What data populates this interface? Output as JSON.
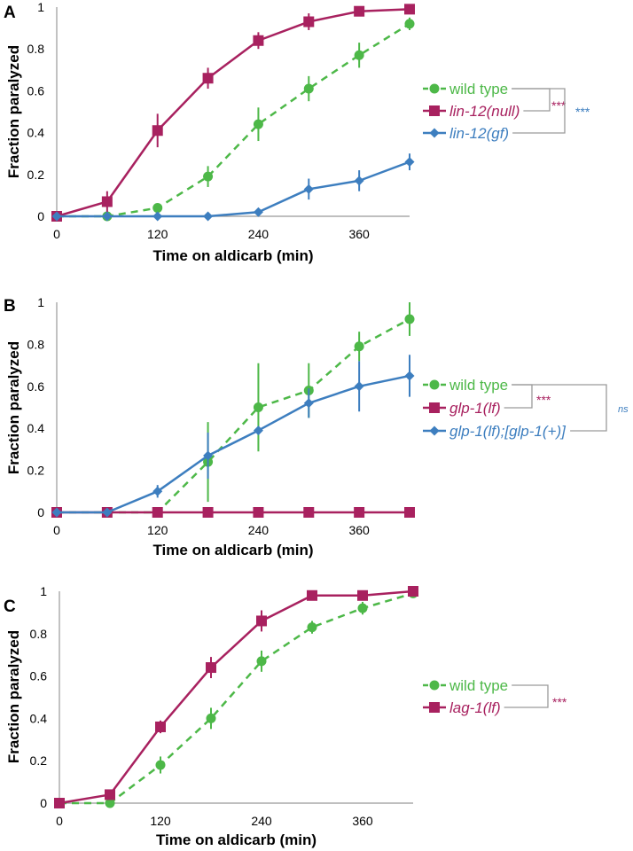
{
  "colors": {
    "wild_type": "#4db848",
    "magenta": "#a8215f",
    "blue": "#3d7ebf",
    "axis": "#999999",
    "bracket": "#9a9a9a",
    "text": "#000000"
  },
  "chart_data": [
    {
      "panel": "A",
      "type": "line",
      "xlabel": "Time on aldicarb (min)",
      "ylabel": "Fraction paralyzed",
      "xlim": [
        0,
        420
      ],
      "ylim": [
        0,
        1
      ],
      "x_ticks": [
        "0",
        "120",
        "240",
        "360"
      ],
      "y_ticks": [
        "0",
        "0.2",
        "0.4",
        "0.6",
        "0.8",
        "1"
      ],
      "series": [
        {
          "name": "wild type",
          "color_key": "wild_type",
          "marker": "circle",
          "dash": true,
          "italic": false,
          "x": [
            0,
            60,
            120,
            180,
            240,
            300,
            360,
            420
          ],
          "y": [
            0,
            0,
            0.04,
            0.19,
            0.44,
            0.61,
            0.77,
            0.92
          ],
          "err": [
            0,
            0,
            0,
            0.05,
            0.08,
            0.06,
            0.06,
            0.03
          ]
        },
        {
          "name": "lin-12(null)",
          "color_key": "magenta",
          "marker": "square",
          "dash": false,
          "italic": true,
          "x": [
            0,
            60,
            120,
            180,
            240,
            300,
            360,
            420
          ],
          "y": [
            0,
            0.07,
            0.41,
            0.66,
            0.84,
            0.93,
            0.98,
            0.99
          ],
          "err": [
            0,
            0.05,
            0.08,
            0.05,
            0.04,
            0.04,
            0.01,
            0.01
          ]
        },
        {
          "name": "lin-12(gf)",
          "color_key": "blue",
          "marker": "diamond",
          "dash": false,
          "italic": true,
          "x": [
            0,
            60,
            120,
            180,
            240,
            300,
            360,
            420
          ],
          "y": [
            0,
            0,
            0,
            0,
            0.02,
            0.13,
            0.17,
            0.26
          ],
          "err": [
            0,
            0,
            0,
            0,
            0.01,
            0.05,
            0.05,
            0.04
          ]
        }
      ],
      "significance": [
        {
          "label": "***",
          "color_key": "magenta",
          "between": [
            "wild type",
            "lin-12(null)"
          ]
        },
        {
          "label": "***",
          "color_key": "blue",
          "between": [
            "wild type",
            "lin-12(gf)"
          ]
        }
      ]
    },
    {
      "panel": "B",
      "type": "line",
      "xlabel": "Time on aldicarb (min)",
      "ylabel": "Fraction paralyzed",
      "xlim": [
        0,
        420
      ],
      "ylim": [
        0,
        1
      ],
      "x_ticks": [
        "0",
        "120",
        "240",
        "360"
      ],
      "y_ticks": [
        "0",
        "0.2",
        "0.4",
        "0.6",
        "0.8",
        "1"
      ],
      "series": [
        {
          "name": "wild type",
          "color_key": "wild_type",
          "marker": "circle",
          "dash": true,
          "italic": false,
          "x": [
            0,
            60,
            120,
            180,
            240,
            300,
            360,
            420
          ],
          "y": [
            0,
            0,
            0,
            0.24,
            0.5,
            0.58,
            0.79,
            0.92
          ],
          "err": [
            0,
            0,
            0,
            0.19,
            0.21,
            0.13,
            0.07,
            0.08
          ]
        },
        {
          "name": "glp-1(lf)",
          "color_key": "magenta",
          "marker": "square",
          "dash": false,
          "italic": true,
          "x": [
            0,
            60,
            120,
            180,
            240,
            300,
            360,
            420
          ],
          "y": [
            0,
            0,
            0,
            0,
            0,
            0,
            0,
            0
          ],
          "err": [
            0,
            0,
            0,
            0,
            0,
            0,
            0,
            0
          ]
        },
        {
          "name": "glp-1(lf);[glp-1(+)]",
          "color_key": "blue",
          "marker": "diamond",
          "dash": false,
          "italic": true,
          "x": [
            0,
            60,
            120,
            180,
            240,
            300,
            360,
            420
          ],
          "y": [
            0,
            0,
            0.1,
            0.27,
            0.39,
            0.52,
            0.6,
            0.65
          ],
          "err": [
            0,
            0,
            0.03,
            0.11,
            0,
            0.07,
            0.12,
            0.1
          ]
        }
      ],
      "significance": [
        {
          "label": "***",
          "color_key": "magenta",
          "between": [
            "wild type",
            "glp-1(lf)"
          ]
        },
        {
          "label": "ns",
          "color_key": "blue",
          "between": [
            "wild type",
            "glp-1(lf);[glp-1(+)]"
          ]
        }
      ]
    },
    {
      "panel": "C",
      "type": "line",
      "xlabel": "Time on aldicarb (min)",
      "ylabel": "Fraction paralyzed",
      "xlim": [
        0,
        420
      ],
      "ylim": [
        0,
        1
      ],
      "x_ticks": [
        "0",
        "120",
        "240",
        "360"
      ],
      "y_ticks": [
        "0",
        "0.2",
        "0.4",
        "0.6",
        "0.8",
        "1"
      ],
      "series": [
        {
          "name": "wild type",
          "color_key": "wild_type",
          "marker": "circle",
          "dash": true,
          "italic": false,
          "x": [
            0,
            60,
            120,
            180,
            240,
            300,
            360,
            420
          ],
          "y": [
            0,
            0,
            0.18,
            0.4,
            0.67,
            0.83,
            0.92,
            0.99
          ],
          "err": [
            0,
            0,
            0.04,
            0.05,
            0.05,
            0.03,
            0.03,
            0.01
          ]
        },
        {
          "name": "lag-1(lf)",
          "color_key": "magenta",
          "marker": "square",
          "dash": false,
          "italic": true,
          "x": [
            0,
            60,
            120,
            180,
            240,
            300,
            360,
            420
          ],
          "y": [
            0,
            0.04,
            0.36,
            0.64,
            0.86,
            0.98,
            0.98,
            1.0
          ],
          "err": [
            0,
            0.02,
            0.03,
            0.05,
            0.05,
            0.01,
            0.01,
            0
          ]
        }
      ],
      "significance": [
        {
          "label": "***",
          "color_key": "magenta",
          "between": [
            "wild type",
            "lag-1(lf)"
          ]
        }
      ]
    }
  ]
}
